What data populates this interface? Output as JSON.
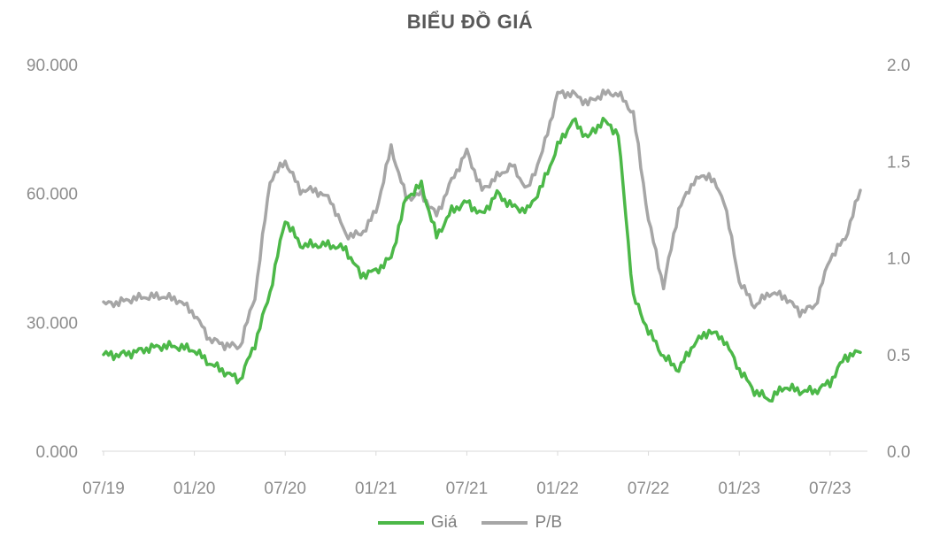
{
  "chart_data": {
    "type": "line",
    "title": "BIỂU ĐỒ GIÁ",
    "x_tick_labels": [
      "07/19",
      "01/20",
      "07/20",
      "01/21",
      "07/21",
      "01/22",
      "07/22",
      "01/23",
      "07/23"
    ],
    "left_axis": {
      "ticks": [
        "0.000",
        "30.000",
        "60.000",
        "90.000"
      ],
      "ylim": [
        0,
        90000
      ]
    },
    "right_axis": {
      "ticks": [
        "0.0",
        "0.5",
        "1.0",
        "1.5",
        "2.0"
      ],
      "ylim": [
        0,
        2.0
      ]
    },
    "legend_position": "bottom",
    "grid": false,
    "months": [
      "2019-07",
      "2019-08",
      "2019-09",
      "2019-10",
      "2019-11",
      "2019-12",
      "2020-01",
      "2020-02",
      "2020-03",
      "2020-04",
      "2020-05",
      "2020-06",
      "2020-07",
      "2020-08",
      "2020-09",
      "2020-10",
      "2020-11",
      "2020-12",
      "2021-01",
      "2021-02",
      "2021-03",
      "2021-04",
      "2021-05",
      "2021-06",
      "2021-07",
      "2021-08",
      "2021-09",
      "2021-10",
      "2021-11",
      "2021-12",
      "2022-01",
      "2022-02",
      "2022-03",
      "2022-04",
      "2022-05",
      "2022-06",
      "2022-07",
      "2022-08",
      "2022-09",
      "2022-10",
      "2022-11",
      "2022-12",
      "2023-01",
      "2023-02",
      "2023-03",
      "2023-04",
      "2023-05",
      "2023-06",
      "2023-07",
      "2023-08",
      "2023-09"
    ],
    "series": [
      {
        "name": "Giá",
        "axis": "left",
        "color": "#4cb848",
        "values": [
          22500,
          22400,
          23000,
          24000,
          24500,
          24300,
          23500,
          20500,
          18500,
          16500,
          25000,
          37000,
          54000,
          48000,
          48000,
          48000,
          47000,
          41000,
          42000,
          45000,
          59000,
          62000,
          50000,
          56000,
          58000,
          55000,
          60000,
          57000,
          56000,
          62000,
          71000,
          77000,
          73000,
          77000,
          74000,
          36000,
          28000,
          22000,
          19000,
          25000,
          28000,
          26000,
          19000,
          14000,
          12000,
          15000,
          14000,
          14000,
          16000,
          22000,
          23000
        ]
      },
      {
        "name": "P/B",
        "axis": "right",
        "color": "#a6a6a6",
        "values": [
          0.76,
          0.77,
          0.79,
          0.8,
          0.8,
          0.78,
          0.71,
          0.58,
          0.55,
          0.54,
          0.8,
          1.4,
          1.5,
          1.35,
          1.35,
          1.3,
          1.12,
          1.12,
          1.24,
          1.57,
          1.31,
          1.33,
          1.22,
          1.4,
          1.55,
          1.35,
          1.42,
          1.48,
          1.35,
          1.55,
          1.85,
          1.85,
          1.8,
          1.85,
          1.85,
          1.75,
          1.2,
          0.85,
          1.25,
          1.4,
          1.43,
          1.3,
          0.88,
          0.75,
          0.82,
          0.8,
          0.72,
          0.75,
          1.0,
          1.1,
          1.35
        ]
      }
    ]
  }
}
